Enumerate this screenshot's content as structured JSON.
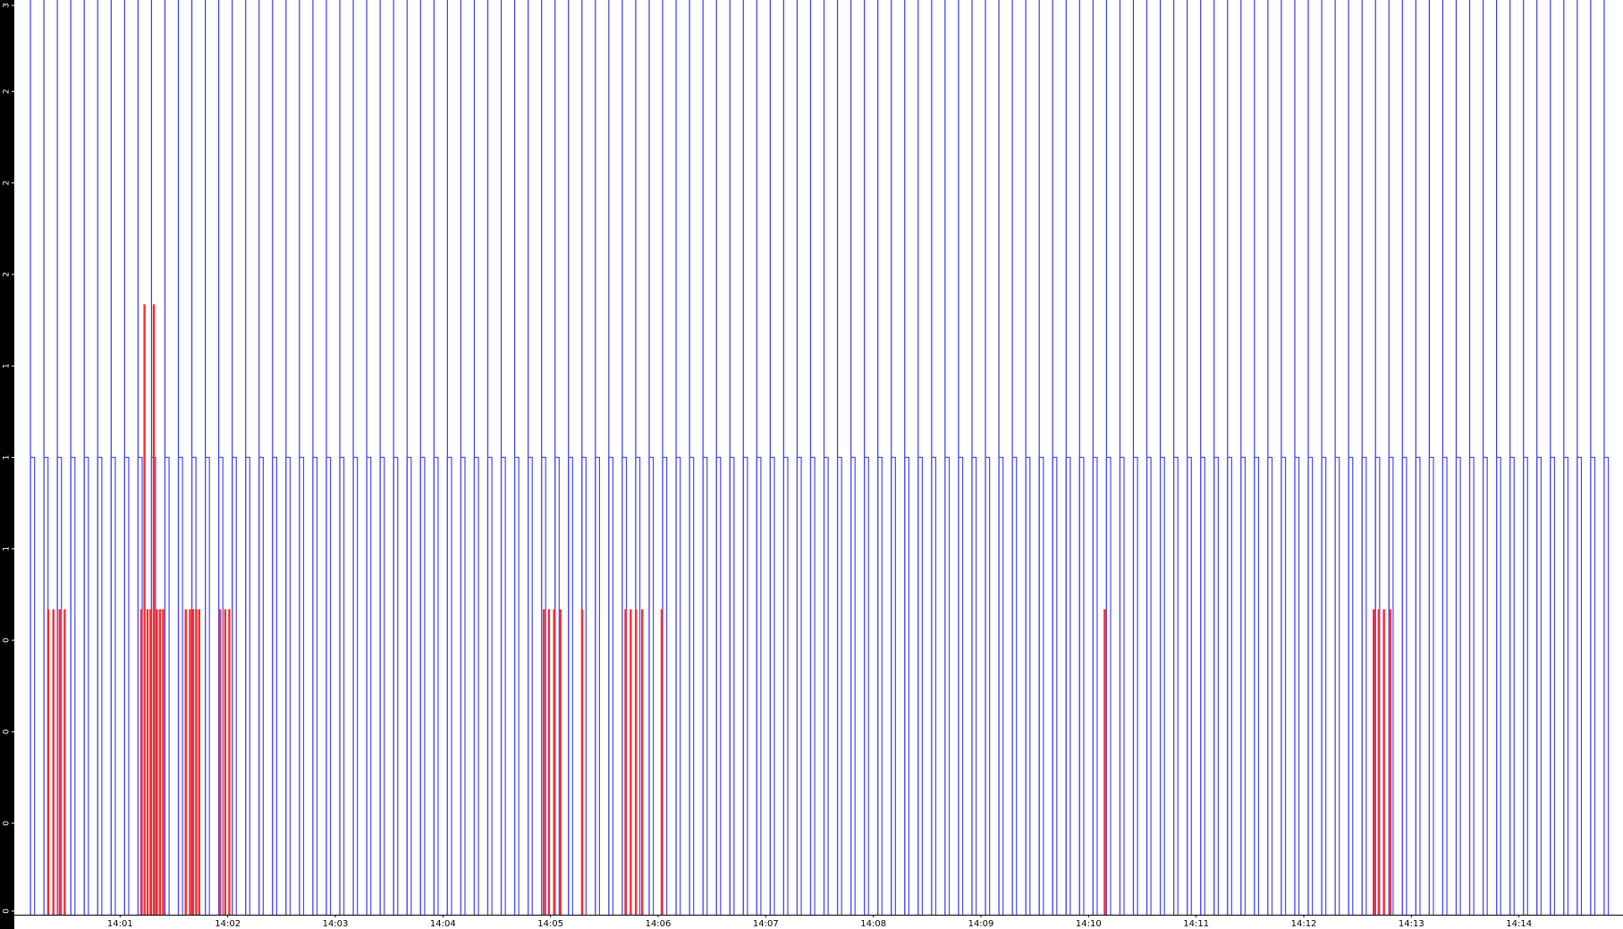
{
  "chart_data": {
    "type": "pulse",
    "xlim": [
      1,
      898
    ],
    "xticks": [
      {
        "value": 60,
        "label": "14:01"
      },
      {
        "value": 120,
        "label": "14:02"
      },
      {
        "value": 180,
        "label": "14:03"
      },
      {
        "value": 240,
        "label": "14:04"
      },
      {
        "value": 300,
        "label": "14:05"
      },
      {
        "value": 360,
        "label": "14:06"
      },
      {
        "value": 420,
        "label": "14:07"
      },
      {
        "value": 480,
        "label": "14:08"
      },
      {
        "value": 540,
        "label": "14:09"
      },
      {
        "value": 600,
        "label": "14:10"
      },
      {
        "value": 660,
        "label": "14:11"
      },
      {
        "value": 720,
        "label": "14:12"
      },
      {
        "value": 780,
        "label": "14:13"
      },
      {
        "value": 840,
        "label": "14:14"
      }
    ],
    "ylim": [
      0,
      3
    ],
    "yticks": [
      {
        "value": 0,
        "label": "0"
      },
      {
        "value": 0.3,
        "label": "0"
      },
      {
        "value": 0.6,
        "label": "0"
      },
      {
        "value": 0.9,
        "label": "0"
      },
      {
        "value": 1.2,
        "label": "1"
      },
      {
        "value": 1.5,
        "label": "1"
      },
      {
        "value": 1.8,
        "label": "1"
      },
      {
        "value": 2.1,
        "label": "2"
      },
      {
        "value": 2.4,
        "label": "2"
      },
      {
        "value": 2.7,
        "label": "2"
      },
      {
        "value": 3,
        "label": "3"
      }
    ],
    "series": [
      {
        "color": "#3a3ae8",
        "width": 0,
        "x": [
          10,
          17.5,
          25,
          32.5,
          40,
          47.5,
          55,
          62.5,
          70,
          77.5,
          85,
          92.5,
          100,
          107.5,
          115,
          122.5,
          130,
          137.5,
          145,
          152.5,
          160,
          167.5,
          175,
          182.5,
          190,
          197.5,
          205,
          212.5,
          220,
          227.5,
          235,
          242.5,
          250,
          257.5,
          265,
          272.5,
          280,
          287.5,
          295,
          302.5,
          310,
          317.5,
          325,
          332.5,
          340,
          347.5,
          355,
          362.5,
          370,
          377.5,
          385,
          392.5,
          400,
          407.5,
          415,
          422.5,
          430,
          437.5,
          445,
          452.5,
          460,
          467.5,
          475,
          482.5,
          490,
          497.5,
          505,
          512.5,
          520,
          527.5,
          535,
          542.5,
          550,
          557.5,
          565,
          572.5,
          580,
          587.5,
          595,
          602.5,
          610,
          617.5,
          625,
          632.5,
          640,
          647.5,
          655,
          662.5,
          670,
          677.5,
          685,
          692.5,
          700,
          707.5,
          715,
          722.5,
          730,
          737.5,
          745,
          752.5,
          760,
          767.5,
          775,
          782.5,
          790,
          797.5,
          805,
          812.5,
          820,
          827.5,
          835,
          842.5,
          850,
          857.5,
          865,
          872.5,
          880,
          887.5
        ],
        "values": [
          3,
          3,
          3,
          3,
          3,
          3,
          3,
          3,
          3,
          3,
          3,
          3,
          3,
          3,
          3,
          3,
          3,
          3,
          3,
          3,
          3,
          3,
          3,
          3,
          3,
          3,
          3,
          3,
          3,
          3,
          3,
          3,
          3,
          3,
          3,
          3,
          3,
          3,
          3,
          3,
          3,
          3,
          3,
          3,
          3,
          3,
          3,
          3,
          3,
          3,
          3,
          3,
          3,
          3,
          3,
          3,
          3,
          3,
          3,
          3,
          3,
          3,
          3,
          3,
          3,
          3,
          3,
          3,
          3,
          3,
          3,
          3,
          3,
          3,
          3,
          3,
          3,
          3,
          3,
          3,
          3,
          3,
          3,
          3,
          3,
          3,
          3,
          3,
          3,
          3,
          3,
          3,
          3,
          3,
          3,
          3,
          3,
          3,
          3,
          3,
          3,
          3,
          3,
          3,
          3,
          3,
          3,
          3,
          3,
          3,
          3,
          3,
          3,
          3,
          3,
          3,
          3,
          3
        ]
      },
      {
        "color": "#4a4af0",
        "width": 2.3,
        "x": [
          10,
          17.5,
          25,
          32.5,
          40,
          47.5,
          55,
          62.5,
          70,
          77.5,
          85,
          92.5,
          100,
          107.5,
          115,
          122.5,
          130,
          137.5,
          145,
          152.5,
          160,
          167.5,
          175,
          182.5,
          190,
          197.5,
          205,
          212.5,
          220,
          227.5,
          235,
          242.5,
          250,
          257.5,
          265,
          272.5,
          280,
          287.5,
          295,
          302.5,
          310,
          317.5,
          325,
          332.5,
          340,
          347.5,
          355,
          362.5,
          370,
          377.5,
          385,
          392.5,
          400,
          407.5,
          415,
          422.5,
          430,
          437.5,
          445,
          452.5,
          460,
          467.5,
          475,
          482.5,
          490,
          497.5,
          505,
          512.5,
          520,
          527.5,
          535,
          542.5,
          550,
          557.5,
          565,
          572.5,
          580,
          587.5,
          595,
          602.5,
          610,
          617.5,
          625,
          632.5,
          640,
          647.5,
          655,
          662.5,
          670,
          677.5,
          685,
          692.5,
          700,
          707.5,
          715,
          722.5,
          730,
          737.5,
          745,
          752.5,
          760,
          767.5,
          775,
          782.5,
          790,
          797.5,
          805,
          812.5,
          820,
          827.5,
          835,
          842.5,
          850,
          857.5,
          865,
          872.5,
          880,
          887.5
        ],
        "values": [
          1.5,
          1.5,
          1.5,
          1.5,
          1.5,
          1.5,
          1.5,
          1.5,
          1.5,
          1.5,
          1.5,
          1.5,
          1.5,
          1.5,
          1.5,
          1.5,
          1.5,
          1.5,
          1.5,
          1.5,
          1.5,
          1.5,
          1.5,
          1.5,
          1.5,
          1.5,
          1.5,
          1.5,
          1.5,
          1.5,
          1.5,
          1.5,
          1.5,
          1.5,
          1.5,
          1.5,
          1.5,
          1.5,
          1.5,
          1.5,
          1.5,
          1.5,
          1.5,
          1.5,
          1.5,
          1.5,
          1.5,
          1.5,
          1.5,
          1.5,
          1.5,
          1.5,
          1.5,
          1.5,
          1.5,
          1.5,
          1.5,
          1.5,
          1.5,
          1.5,
          1.5,
          1.5,
          1.5,
          1.5,
          1.5,
          1.5,
          1.5,
          1.5,
          1.5,
          1.5,
          1.5,
          1.5,
          1.5,
          1.5,
          1.5,
          1.5,
          1.5,
          1.5,
          1.5,
          1.5,
          1.5,
          1.5,
          1.5,
          1.5,
          1.5,
          1.5,
          1.5,
          1.5,
          1.5,
          1.5,
          1.5,
          1.5,
          1.5,
          1.5,
          1.5,
          1.5,
          1.5,
          1.5,
          1.5,
          1.5,
          1.5,
          1.5,
          1.5,
          1.5,
          1.5,
          1.5,
          1.5,
          1.5,
          1.5,
          1.5,
          1.5,
          1.5,
          1.5,
          1.5,
          1.5,
          1.5,
          1.5,
          1.5
        ]
      },
      {
        "color": "#ff2a2a",
        "width": 0.6,
        "x": [
          19.6,
          22.5,
          26,
          28.8,
          71.5,
          73.3,
          75,
          76.7,
          78.5,
          80.2,
          81.9,
          83.7,
          96.3,
          98.7,
          100.4,
          102.1,
          103.8,
          115.4,
          118.3,
          120.6,
          296,
          298.8,
          301.7,
          305.2,
          317.3,
          341.5,
          344.4,
          347.3,
          350.8,
          361.7,
          608.7,
          758.7,
          761.5,
          764.4,
          767.9
        ],
        "values": [
          1,
          1,
          1,
          1,
          1,
          2,
          1,
          1,
          2,
          1,
          1,
          1,
          1,
          1,
          1,
          1,
          1,
          1,
          1,
          1,
          1,
          1,
          1,
          1,
          1,
          1,
          1,
          1,
          1,
          1,
          1,
          1,
          1,
          1,
          1
        ]
      }
    ]
  }
}
